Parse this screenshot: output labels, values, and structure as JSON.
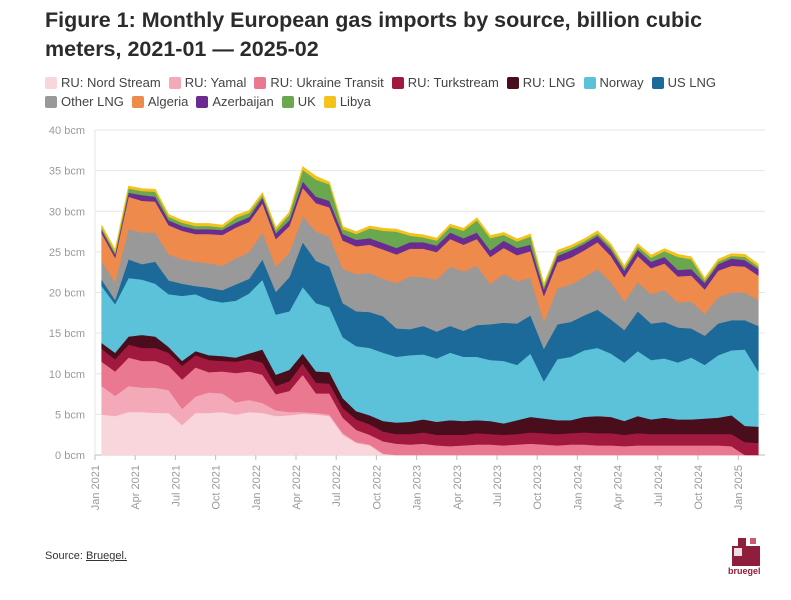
{
  "title": "Figure 1: Monthly European gas imports by source, billion cubic meters, 2021-01 — 2025-02",
  "source": {
    "label": "Source:",
    "link_text": "Bruegel."
  },
  "logo_text": "bruegel",
  "chart_data": {
    "type": "area",
    "stacked": true,
    "unit": "bcm",
    "ylim": [
      0,
      40
    ],
    "y_ticks": [
      0,
      5,
      10,
      15,
      20,
      25,
      30,
      35,
      40
    ],
    "y_tick_labels": [
      "0 bcm",
      "5 bcm",
      "10 bcm",
      "15 bcm",
      "20 bcm",
      "25 bcm",
      "30 bcm",
      "35 bcm",
      "40 bcm"
    ],
    "grid": true,
    "legend_position": "top",
    "x_tick_labels": [
      "Jan 2021",
      "Apr 2021",
      "Jul 2021",
      "Oct 2021",
      "Jan 2022",
      "Apr 2022",
      "Jul 2022",
      "Oct 2022",
      "Jan 2023",
      "Apr 2023",
      "Jul 2023",
      "Oct 2023",
      "Jan 2024",
      "Apr 2024",
      "Jul 2024",
      "Oct 2024",
      "Jan 2025"
    ],
    "x": [
      "2021-01",
      "2021-02",
      "2021-03",
      "2021-04",
      "2021-05",
      "2021-06",
      "2021-07",
      "2021-08",
      "2021-09",
      "2021-10",
      "2021-11",
      "2021-12",
      "2022-01",
      "2022-02",
      "2022-03",
      "2022-04",
      "2022-05",
      "2022-06",
      "2022-07",
      "2022-08",
      "2022-09",
      "2022-10",
      "2022-11",
      "2022-12",
      "2023-01",
      "2023-02",
      "2023-03",
      "2023-04",
      "2023-05",
      "2023-06",
      "2023-07",
      "2023-08",
      "2023-09",
      "2023-10",
      "2023-11",
      "2023-12",
      "2024-01",
      "2024-02",
      "2024-03",
      "2024-04",
      "2024-05",
      "2024-06",
      "2024-07",
      "2024-08",
      "2024-09",
      "2024-10",
      "2024-11",
      "2024-12",
      "2025-01",
      "2025-02"
    ],
    "series": [
      {
        "name": "RU: Nord Stream",
        "color": "#f9d5dc",
        "values": [
          5.0,
          4.8,
          5.3,
          5.3,
          5.2,
          5.2,
          3.7,
          5.2,
          5.2,
          5.3,
          5.0,
          5.3,
          5.2,
          4.8,
          4.9,
          5.1,
          5.0,
          4.8,
          2.5,
          1.5,
          1.2,
          0.1,
          0,
          0,
          0,
          0,
          0,
          0,
          0,
          0,
          0,
          0,
          0,
          0,
          0,
          0,
          0,
          0,
          0,
          0,
          0,
          0,
          0,
          0,
          0,
          0,
          0,
          0,
          0,
          0
        ]
      },
      {
        "name": "RU: Yamal",
        "color": "#f4a9b9",
        "values": [
          3.5,
          2.5,
          3.2,
          3.0,
          3.1,
          2.8,
          2.0,
          2.0,
          2.5,
          2.3,
          1.5,
          1.5,
          1.2,
          0.7,
          0.4,
          0.2,
          0.2,
          0.2,
          0.2,
          0.1,
          0.1,
          0.1,
          0,
          0,
          0,
          0,
          0,
          0,
          0,
          0,
          0,
          0,
          0,
          0,
          0,
          0,
          0,
          0,
          0,
          0,
          0,
          0,
          0,
          0,
          0,
          0,
          0,
          0,
          0,
          0
        ]
      },
      {
        "name": "RU: Ukraine Transit",
        "color": "#ea7891",
        "values": [
          3.0,
          3.0,
          3.5,
          3.3,
          3.3,
          3.0,
          3.6,
          3.6,
          2.5,
          2.7,
          3.6,
          3.5,
          3.5,
          2.0,
          2.6,
          4.6,
          2.4,
          2.6,
          1.9,
          1.5,
          1.2,
          1.5,
          1.4,
          1.3,
          1.4,
          1.2,
          1.1,
          1.2,
          1.3,
          1.3,
          1.2,
          1.3,
          1.4,
          1.3,
          1.2,
          1.3,
          1.3,
          1.2,
          1.2,
          1.1,
          1.2,
          1.2,
          1.2,
          1.2,
          1.2,
          1.2,
          1.2,
          1.1,
          0,
          0
        ]
      },
      {
        "name": "RU: Turkstream",
        "color": "#a1193e",
        "values": [
          1.6,
          1.5,
          1.6,
          1.6,
          1.6,
          1.6,
          1.7,
          1.5,
          1.5,
          1.3,
          1.4,
          1.5,
          1.5,
          1.0,
          1.2,
          1.4,
          1.3,
          1.2,
          1.2,
          1.3,
          1.3,
          1.2,
          1.2,
          1.3,
          1.4,
          1.3,
          1.4,
          1.3,
          1.4,
          1.3,
          1.3,
          1.3,
          1.4,
          1.4,
          1.4,
          1.4,
          1.5,
          1.5,
          1.5,
          1.4,
          1.5,
          1.4,
          1.4,
          1.4,
          1.4,
          1.4,
          1.4,
          1.5,
          1.6,
          1.5
        ]
      },
      {
        "name": "RU: LNG",
        "color": "#4a0d1b",
        "values": [
          0.7,
          0.8,
          1.0,
          1.6,
          1.4,
          0.7,
          0.6,
          0.5,
          0.6,
          0.6,
          0.5,
          0.7,
          1.6,
          1.4,
          1.4,
          1.2,
          1.4,
          1.4,
          1.2,
          1.0,
          1.1,
          1.3,
          1.4,
          1.5,
          1.6,
          1.6,
          1.8,
          1.7,
          1.6,
          1.6,
          1.4,
          1.7,
          1.9,
          1.8,
          1.7,
          1.6,
          1.9,
          2.1,
          2.0,
          1.7,
          2.1,
          1.8,
          2.0,
          1.8,
          1.8,
          1.9,
          2.0,
          2.3,
          2.0,
          2.0
        ]
      },
      {
        "name": "Norway",
        "color": "#5cc2d9",
        "values": [
          7.0,
          6.0,
          7.2,
          6.8,
          6.5,
          6.5,
          8.0,
          7.0,
          6.8,
          6.6,
          7.0,
          7.4,
          8.6,
          7.4,
          7.2,
          8.2,
          8.4,
          8.0,
          7.5,
          8.0,
          8.3,
          8.4,
          8.1,
          8.2,
          8.0,
          7.8,
          8.3,
          7.9,
          7.8,
          7.5,
          7.7,
          6.8,
          7.8,
          4.6,
          7.5,
          7.8,
          8.2,
          8.4,
          7.8,
          7.2,
          8.0,
          7.3,
          7.3,
          7.0,
          7.6,
          6.6,
          7.7,
          8.0,
          9.4,
          6.8
        ]
      },
      {
        "name": "US LNG",
        "color": "#1c6a99",
        "values": [
          0.8,
          0.5,
          2.3,
          1.9,
          2.7,
          1.7,
          1.5,
          1.0,
          1.5,
          1.5,
          2.0,
          1.8,
          2.5,
          2.8,
          4.2,
          5.5,
          5.2,
          5.0,
          4.2,
          4.3,
          4.4,
          4.5,
          3.5,
          3.2,
          3.5,
          3.3,
          3.3,
          3.2,
          3.9,
          4.4,
          4.7,
          5.1,
          4.7,
          4.0,
          4.3,
          4.3,
          4.3,
          4.7,
          4.2,
          4.0,
          4.9,
          4.5,
          4.5,
          4.3,
          3.6,
          3.6,
          3.9,
          3.7,
          3.6,
          5.6
        ]
      },
      {
        "name": "Other LNG",
        "color": "#999999",
        "values": [
          2.2,
          2.2,
          3.7,
          3.9,
          3.6,
          3.2,
          3.0,
          3.0,
          3.0,
          3.0,
          3.2,
          3.3,
          3.3,
          3.1,
          3.0,
          3.2,
          3.6,
          3.7,
          4.2,
          4.6,
          4.8,
          4.6,
          5.6,
          6.5,
          6.0,
          6.4,
          7.3,
          7.3,
          7.3,
          5.0,
          6.0,
          5.2,
          4.6,
          3.3,
          4.4,
          4.6,
          4.7,
          5.0,
          4.6,
          3.5,
          3.6,
          3.6,
          3.9,
          3.1,
          3.3,
          2.7,
          3.2,
          3.4,
          3.4,
          3.2
        ]
      },
      {
        "name": "Algeria",
        "color": "#ee8a4c",
        "values": [
          3.5,
          3.0,
          4.0,
          3.9,
          3.8,
          3.6,
          3.5,
          3.4,
          3.6,
          3.8,
          3.8,
          3.7,
          3.6,
          3.4,
          3.3,
          3.5,
          3.5,
          3.6,
          3.5,
          3.4,
          3.5,
          3.6,
          3.5,
          3.4,
          3.5,
          3.4,
          3.4,
          3.3,
          3.3,
          3.3,
          3.2,
          3.2,
          3.3,
          3.2,
          3.2,
          3.3,
          3.3,
          3.3,
          3.2,
          3.0,
          3.2,
          3.2,
          3.3,
          3.2,
          3.2,
          3.0,
          3.3,
          3.3,
          3.2,
          3.0
        ]
      },
      {
        "name": "Azerbaijan",
        "color": "#6a2c91",
        "values": [
          0.4,
          0.4,
          0.5,
          0.7,
          0.6,
          0.6,
          0.6,
          0.6,
          0.6,
          0.6,
          0.6,
          0.6,
          0.7,
          0.7,
          0.7,
          0.8,
          0.8,
          0.8,
          0.8,
          0.8,
          0.8,
          0.8,
          0.8,
          0.8,
          0.8,
          0.8,
          0.8,
          0.8,
          0.8,
          0.8,
          0.9,
          0.9,
          0.8,
          0.8,
          0.8,
          0.9,
          0.8,
          0.8,
          0.8,
          0.8,
          0.8,
          0.8,
          0.8,
          0.8,
          0.8,
          0.8,
          0.8,
          0.9,
          0.8,
          0.8
        ]
      },
      {
        "name": "UK",
        "color": "#6aa84f",
        "values": [
          0.3,
          0.3,
          0.5,
          0.5,
          0.6,
          0.4,
          0.4,
          0.4,
          0.4,
          0.3,
          0.6,
          0.5,
          0.3,
          0.4,
          0.7,
          1.4,
          2.1,
          2.0,
          0.6,
          0.7,
          1.2,
          1.5,
          2.0,
          0.8,
          0.6,
          0.6,
          0.7,
          0.9,
          1.5,
          1.5,
          0.7,
          0.8,
          1.0,
          0.4,
          0.4,
          0.3,
          0.3,
          0.3,
          0.4,
          0.3,
          0.4,
          0.5,
          0.7,
          1.6,
          1.2,
          0.3,
          0.3,
          0.3,
          0.4,
          0.3
        ]
      },
      {
        "name": "Libya",
        "color": "#f3c31c",
        "values": [
          0.3,
          0.3,
          0.3,
          0.3,
          0.3,
          0.3,
          0.3,
          0.3,
          0.3,
          0.3,
          0.3,
          0.3,
          0.3,
          0.3,
          0.3,
          0.4,
          0.4,
          0.3,
          0.3,
          0.3,
          0.3,
          0.3,
          0.3,
          0.3,
          0.3,
          0.3,
          0.3,
          0.3,
          0.3,
          0.3,
          0.3,
          0.3,
          0.3,
          0.3,
          0.3,
          0.3,
          0.3,
          0.3,
          0.3,
          0.3,
          0.3,
          0.3,
          0.3,
          0.3,
          0.3,
          0.3,
          0.3,
          0.3,
          0.3,
          0.3
        ]
      }
    ]
  }
}
